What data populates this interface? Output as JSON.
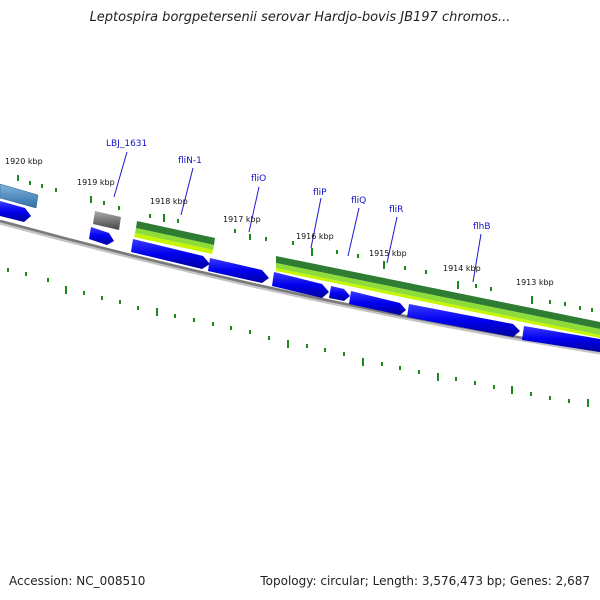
{
  "title": "Leptospira borgpetersenii serovar Hardjo-bovis JB197 chromos...",
  "footer": {
    "accession": "Accession: NC_008510",
    "summary": "Topology: circular; Length: 3,576,473 bp; Genes: 2,687"
  },
  "kbp_labels": [
    "1920 kbp",
    "1919 kbp",
    "1918 kbp",
    "1917 kbp",
    "1916 kbp",
    "1915 kbp",
    "1914 kbp",
    "1913 kbp"
  ],
  "gene_labels": [
    "LBJ_1631",
    "fliN-1",
    "fliO",
    "fliP",
    "fliQ",
    "fliR",
    "flhB"
  ],
  "colors": {
    "gene_blue": "#0000ee",
    "tick_green": "#1a8a1a",
    "band_dark_green": "#2e7d32",
    "band_light_green": "#b2f000",
    "backbone_gray": "#7a7a7a",
    "pseudo_gray": "#555555",
    "steel_blue": "#4682b4",
    "label_blue": "#1010cc"
  }
}
